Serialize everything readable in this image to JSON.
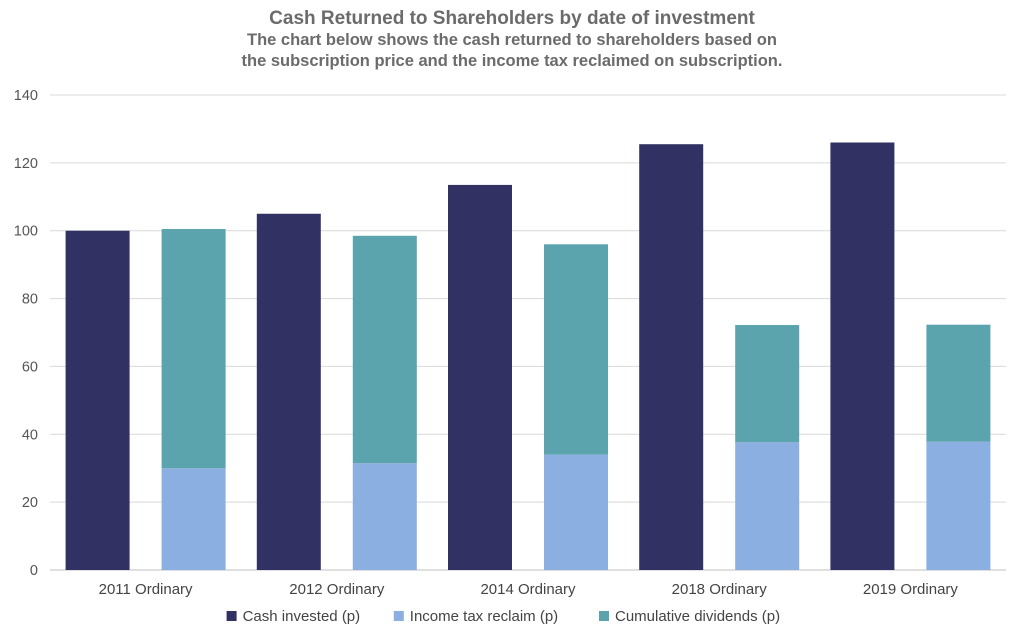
{
  "chart_data": {
    "type": "bar",
    "title": "Cash Returned to Shareholders by date of investment",
    "subtitle_lines": [
      "The chart below shows the cash returned to shareholders based on",
      "the subscription price and the income tax reclaimed on subscription."
    ],
    "categories": [
      "2011 Ordinary",
      "2012 Ordinary",
      "2014 Ordinary",
      "2018 Ordinary",
      "2019 Ordinary"
    ],
    "ylim": [
      0,
      140
    ],
    "yticks": [
      0,
      20,
      40,
      60,
      80,
      100,
      120,
      140
    ],
    "grid": true,
    "legend_position": "bottom",
    "series": [
      {
        "name": "Cash invested (p)",
        "stack": "invested",
        "color": "#313263",
        "values": [
          100,
          105,
          113.5,
          125.5,
          126
        ]
      },
      {
        "name": "Income tax reclaim (p)",
        "stack": "returned",
        "color": "#8aafe0",
        "values": [
          30,
          31.5,
          34,
          37.7,
          37.8
        ]
      },
      {
        "name": "Cumulative dividends (p)",
        "stack": "returned",
        "color": "#5ba3ad",
        "values": [
          70.5,
          67,
          62,
          34.5,
          34.5
        ]
      }
    ]
  }
}
